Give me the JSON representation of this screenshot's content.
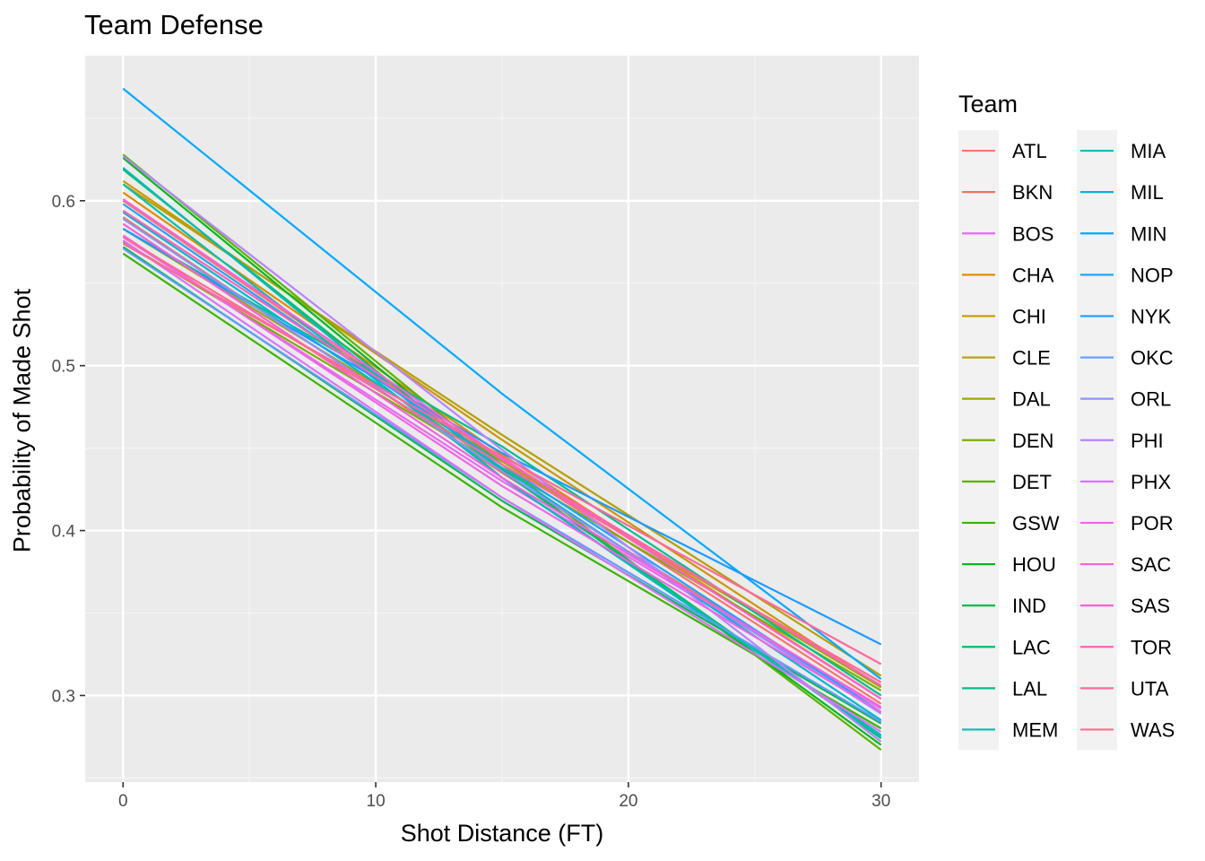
{
  "chart_data": {
    "type": "line",
    "title": "Team Defense",
    "xlabel": "Shot Distance (FT)",
    "ylabel": "Probability of Made Shot",
    "xlim": [
      -1.5,
      31.5
    ],
    "ylim": [
      0.2475,
      0.688
    ],
    "x_ticks": [
      0,
      10,
      20,
      30
    ],
    "x_tick_labels": [
      "0",
      "10",
      "20",
      "30"
    ],
    "y_ticks": [
      0.3,
      0.4,
      0.5,
      0.6
    ],
    "y_tick_labels": [
      "0.3",
      "0.4",
      "0.5",
      "0.6"
    ],
    "grid": true,
    "legend_title": "Team",
    "legend_position": "right",
    "series": [
      {
        "name": "ATL",
        "color": "#F8766D",
        "x": [
          0,
          15,
          30
        ],
        "y": [
          0.6,
          0.442,
          0.295
        ]
      },
      {
        "name": "BKN",
        "color": "#F2735A",
        "x": [
          0,
          15,
          30
        ],
        "y": [
          0.59,
          0.435,
          0.292
        ]
      },
      {
        "name": "BOS",
        "color": "#E76BF3",
        "x": [
          0,
          15,
          30
        ],
        "y": [
          0.578,
          0.43,
          0.292
        ]
      },
      {
        "name": "CHA",
        "color": "#DF8C00",
        "x": [
          0,
          15,
          30
        ],
        "y": [
          0.605,
          0.446,
          0.298
        ]
      },
      {
        "name": "CHI",
        "color": "#C99800",
        "x": [
          0,
          15,
          30
        ],
        "y": [
          0.612,
          0.455,
          0.305
        ]
      },
      {
        "name": "CLE",
        "color": "#B3A000",
        "x": [
          0,
          15,
          30
        ],
        "y": [
          0.61,
          0.458,
          0.312
        ]
      },
      {
        "name": "DAL",
        "color": "#9BA800",
        "x": [
          0,
          15,
          30
        ],
        "y": [
          0.583,
          0.442,
          0.305
        ]
      },
      {
        "name": "DEN",
        "color": "#7CAE00",
        "x": [
          0,
          15,
          30
        ],
        "y": [
          0.575,
          0.438,
          0.303
        ]
      },
      {
        "name": "DET",
        "color": "#5BB300",
        "x": [
          0,
          15,
          30
        ],
        "y": [
          0.628,
          0.44,
          0.267
        ]
      },
      {
        "name": "GSW",
        "color": "#39B600",
        "x": [
          0,
          15,
          30
        ],
        "y": [
          0.568,
          0.414,
          0.28
        ]
      },
      {
        "name": "HOU",
        "color": "#00B81F",
        "x": [
          0,
          15,
          30
        ],
        "y": [
          0.626,
          0.437,
          0.27
        ]
      },
      {
        "name": "IND",
        "color": "#00BB4E",
        "x": [
          0,
          15,
          30
        ],
        "y": [
          0.572,
          0.418,
          0.283
        ]
      },
      {
        "name": "LAC",
        "color": "#00BE6C",
        "x": [
          0,
          15,
          30
        ],
        "y": [
          0.619,
          0.436,
          0.274
        ]
      },
      {
        "name": "LAL",
        "color": "#00C08B",
        "x": [
          0,
          15,
          30
        ],
        "y": [
          0.583,
          0.451,
          0.3
        ]
      },
      {
        "name": "MEM",
        "color": "#00C0AA",
        "x": [
          0,
          15,
          30
        ],
        "y": [
          0.61,
          0.432,
          0.276
        ]
      },
      {
        "name": "MIA",
        "color": "#00BBB8",
        "x": [
          0,
          15,
          30
        ],
        "y": [
          0.62,
          0.432,
          0.275
        ]
      },
      {
        "name": "MIL",
        "color": "#00B7D3",
        "x": [
          0,
          15,
          30
        ],
        "y": [
          0.593,
          0.438,
          0.285
        ]
      },
      {
        "name": "MIN",
        "color": "#00A9FF",
        "x": [
          0,
          15,
          30
        ],
        "y": [
          0.668,
          0.483,
          0.31
        ]
      },
      {
        "name": "NOP",
        "color": "#22A3FF",
        "x": [
          0,
          15,
          30
        ],
        "y": [
          0.598,
          0.44,
          0.29
        ]
      },
      {
        "name": "NYK",
        "color": "#1E9BFF",
        "x": [
          0,
          15,
          30
        ],
        "y": [
          0.583,
          0.447,
          0.331
        ]
      },
      {
        "name": "OKC",
        "color": "#619CFF",
        "x": [
          0,
          15,
          30
        ],
        "y": [
          0.571,
          0.42,
          0.284
        ]
      },
      {
        "name": "ORL",
        "color": "#8F91FF",
        "x": [
          0,
          15,
          30
        ],
        "y": [
          0.589,
          0.436,
          0.289
        ]
      },
      {
        "name": "PHI",
        "color": "#B983FF",
        "x": [
          0,
          15,
          30
        ],
        "y": [
          0.627,
          0.449,
          0.272
        ]
      },
      {
        "name": "PHX",
        "color": "#DB72FB",
        "x": [
          0,
          15,
          30
        ],
        "y": [
          0.576,
          0.42,
          0.278
        ]
      },
      {
        "name": "POR",
        "color": "#EE67E6",
        "x": [
          0,
          15,
          30
        ],
        "y": [
          0.579,
          0.427,
          0.29
        ]
      },
      {
        "name": "SAC",
        "color": "#F562DA",
        "x": [
          0,
          15,
          30
        ],
        "y": [
          0.586,
          0.432,
          0.293
        ]
      },
      {
        "name": "SAS",
        "color": "#FB61D7",
        "x": [
          0,
          15,
          30
        ],
        "y": [
          0.601,
          0.444,
          0.298
        ]
      },
      {
        "name": "TOR",
        "color": "#FF63B6",
        "x": [
          0,
          15,
          30
        ],
        "y": [
          0.594,
          0.443,
          0.306
        ]
      },
      {
        "name": "UTA",
        "color": "#FF689F",
        "x": [
          0,
          15,
          30
        ],
        "y": [
          0.574,
          0.445,
          0.319
        ]
      },
      {
        "name": "WAS",
        "color": "#FF6C91",
        "x": [
          0,
          15,
          30
        ],
        "y": [
          0.578,
          0.44,
          0.308
        ]
      }
    ]
  }
}
